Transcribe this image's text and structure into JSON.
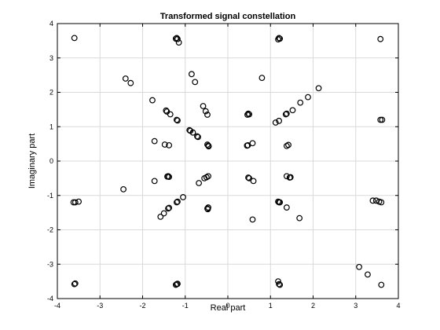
{
  "chart_data": {
    "type": "scatter",
    "title": "Transformed signal constellation",
    "xlabel": "Real part",
    "ylabel": "Imaginary part",
    "xlim": [
      -4,
      4
    ],
    "ylim": [
      -4,
      4
    ],
    "xticks": [
      -4,
      -3,
      -2,
      -1,
      0,
      1,
      2,
      3,
      4
    ],
    "yticks": [
      -4,
      -3,
      -2,
      -1,
      0,
      1,
      2,
      3,
      4
    ],
    "grid": true,
    "marker": "open-circle",
    "colors": {
      "marker": "#000000",
      "grid": "#d9d9d9",
      "axes": "#000000"
    },
    "points": [
      [
        -3.6,
        3.58
      ],
      [
        -1.2,
        3.58
      ],
      [
        -1.22,
        3.56
      ],
      [
        -1.18,
        3.55
      ],
      [
        -1.15,
        3.45
      ],
      [
        1.2,
        3.58
      ],
      [
        1.22,
        3.56
      ],
      [
        1.18,
        3.54
      ],
      [
        3.58,
        3.55
      ],
      [
        -2.4,
        2.4
      ],
      [
        -2.28,
        2.27
      ],
      [
        -0.85,
        2.53
      ],
      [
        -0.77,
        2.3
      ],
      [
        0.8,
        2.42
      ],
      [
        2.13,
        2.12
      ],
      [
        -1.77,
        1.77
      ],
      [
        -0.58,
        1.6
      ],
      [
        -0.52,
        1.45
      ],
      [
        -0.48,
        1.35
      ],
      [
        1.88,
        1.86
      ],
      [
        1.7,
        1.7
      ],
      [
        1.52,
        1.48
      ],
      [
        -1.45,
        1.47
      ],
      [
        -1.43,
        1.44
      ],
      [
        -1.35,
        1.36
      ],
      [
        -1.2,
        1.2
      ],
      [
        -1.18,
        1.18
      ],
      [
        0.48,
        1.38
      ],
      [
        0.46,
        1.35
      ],
      [
        0.5,
        1.36
      ],
      [
        1.38,
        1.38
      ],
      [
        1.36,
        1.36
      ],
      [
        1.2,
        1.17
      ],
      [
        1.12,
        1.12
      ],
      [
        3.58,
        1.2
      ],
      [
        3.62,
        1.2
      ],
      [
        -0.9,
        0.9
      ],
      [
        -0.88,
        0.88
      ],
      [
        -0.82,
        0.83
      ],
      [
        -0.72,
        0.72
      ],
      [
        -0.7,
        0.7
      ],
      [
        -1.72,
        0.58
      ],
      [
        -1.48,
        0.48
      ],
      [
        -1.38,
        0.46
      ],
      [
        -0.48,
        0.48
      ],
      [
        -0.46,
        0.45
      ],
      [
        -0.45,
        0.43
      ],
      [
        0.45,
        0.45
      ],
      [
        0.47,
        0.46
      ],
      [
        0.58,
        0.52
      ],
      [
        1.38,
        0.44
      ],
      [
        1.42,
        0.47
      ],
      [
        -1.42,
        -0.45
      ],
      [
        -1.4,
        -0.44
      ],
      [
        -1.38,
        -0.46
      ],
      [
        -1.72,
        -0.58
      ],
      [
        -0.55,
        -0.5
      ],
      [
        -0.5,
        -0.47
      ],
      [
        -0.46,
        -0.44
      ],
      [
        -0.68,
        -0.64
      ],
      [
        0.48,
        -0.48
      ],
      [
        0.5,
        -0.5
      ],
      [
        0.6,
        -0.58
      ],
      [
        1.38,
        -0.44
      ],
      [
        1.45,
        -0.48
      ],
      [
        1.47,
        -0.47
      ],
      [
        -2.45,
        -0.82
      ],
      [
        -3.58,
        -1.2
      ],
      [
        -3.62,
        -1.2
      ],
      [
        -3.5,
        -1.18
      ],
      [
        -1.18,
        -1.18
      ],
      [
        -1.2,
        -1.2
      ],
      [
        -1.05,
        -1.05
      ],
      [
        1.18,
        -1.18
      ],
      [
        1.2,
        -1.2
      ],
      [
        1.22,
        -1.2
      ],
      [
        3.4,
        -1.15
      ],
      [
        3.48,
        -1.15
      ],
      [
        3.55,
        -1.18
      ],
      [
        3.6,
        -1.2
      ],
      [
        -1.5,
        -1.52
      ],
      [
        -1.58,
        -1.62
      ],
      [
        -1.4,
        -1.38
      ],
      [
        -1.38,
        -1.36
      ],
      [
        -0.48,
        -1.38
      ],
      [
        -0.46,
        -1.35
      ],
      [
        -0.47,
        -1.4
      ],
      [
        1.38,
        -1.35
      ],
      [
        0.58,
        -1.7
      ],
      [
        1.68,
        -1.66
      ],
      [
        -3.6,
        -3.58
      ],
      [
        -3.58,
        -3.56
      ],
      [
        -1.2,
        -3.58
      ],
      [
        -1.22,
        -3.6
      ],
      [
        -1.18,
        -3.57
      ],
      [
        1.18,
        -3.5
      ],
      [
        1.2,
        -3.58
      ],
      [
        1.22,
        -3.6
      ],
      [
        3.08,
        -3.08
      ],
      [
        3.28,
        -3.3
      ],
      [
        3.6,
        -3.6
      ]
    ]
  }
}
